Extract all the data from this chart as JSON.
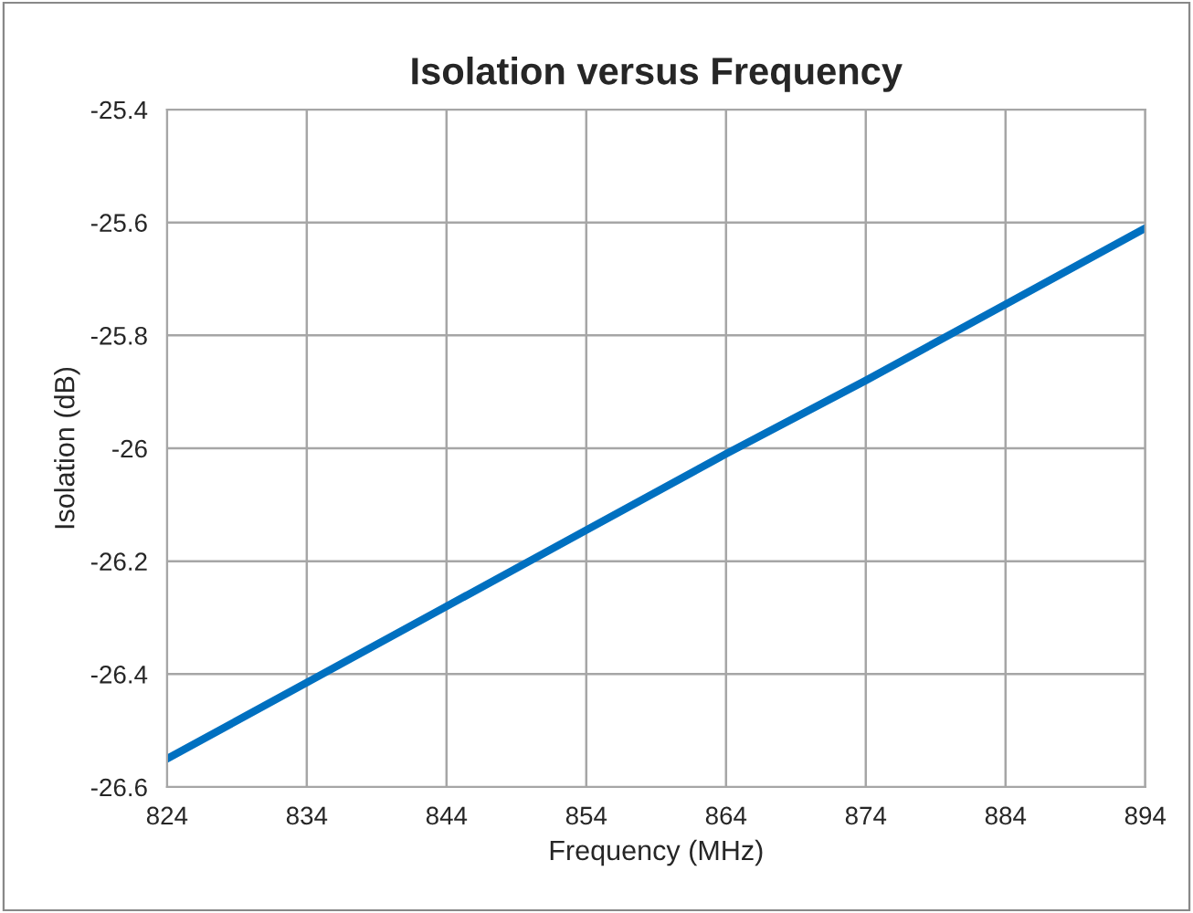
{
  "chart_data": {
    "type": "line",
    "title": "Isolation versus Frequency",
    "xlabel": "Frequency (MHz)",
    "ylabel": "Isolation (dB)",
    "x": [
      824,
      834,
      844,
      854,
      864,
      874,
      884,
      894
    ],
    "series": [
      {
        "color": "#0070c0",
        "values": [
          -26.55,
          -26.415,
          -26.28,
          -26.145,
          -26.01,
          -25.88,
          -25.745,
          -25.61
        ]
      }
    ],
    "xlim": [
      824,
      894
    ],
    "xticks": [
      824,
      834,
      844,
      854,
      864,
      874,
      884,
      894
    ],
    "ylim": [
      -26.6,
      -25.4
    ],
    "yticks": [
      -26.6,
      -26.4,
      -26.2,
      -26,
      -25.8,
      -25.6,
      -25.4
    ],
    "grid": true,
    "marker": "none",
    "line_style": "solid"
  }
}
